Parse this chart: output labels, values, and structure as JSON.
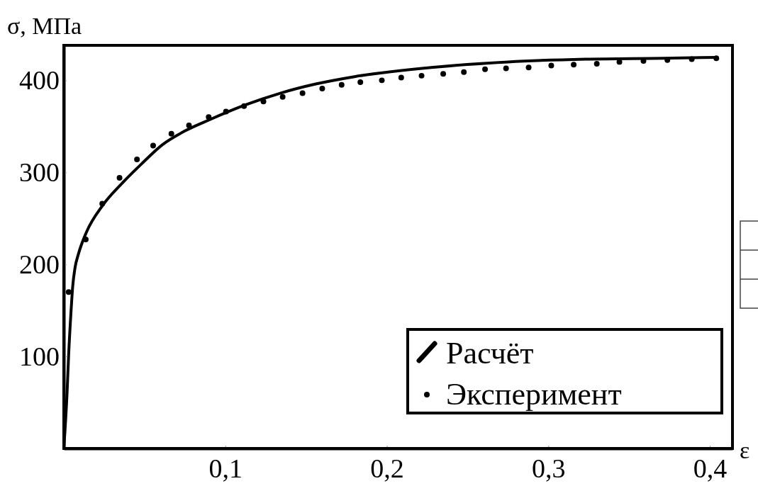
{
  "chart_data": {
    "type": "line",
    "xlabel": "ε",
    "ylabel": "σ, МПа",
    "xlim": [
      0,
      0.414
    ],
    "ylim": [
      0,
      438
    ],
    "xticks": [
      {
        "value": 0.1,
        "label": "0,1"
      },
      {
        "value": 0.2,
        "label": "0,2"
      },
      {
        "value": 0.3,
        "label": "0,3"
      },
      {
        "value": 0.4,
        "label": "0,4"
      }
    ],
    "yticks": [
      100,
      200,
      300,
      400
    ],
    "grid": false,
    "legend": "bottom right",
    "series": [
      {
        "name": "Расчёт",
        "color": "#000000",
        "marker": "none",
        "line_style": "solid",
        "x": [
          0,
          0.002,
          0.003,
          0.0045,
          0.0055,
          0.007,
          0.009,
          0.014,
          0.024,
          0.036,
          0.048,
          0.061,
          0.075,
          0.09,
          0.112,
          0.134,
          0.156,
          0.18,
          0.2275,
          0.275,
          0.323,
          0.371,
          0.404
        ],
        "values": [
          0,
          60,
          102,
          150,
          176,
          197,
          211,
          235,
          264,
          288,
          309,
          330,
          345,
          357,
          373,
          386,
          396,
          404,
          414,
          420,
          423,
          424,
          425
        ]
      },
      {
        "name": "Эксперимент",
        "type": "scatter",
        "color": "#000000",
        "marker": "circle",
        "x": [
          0.003,
          0.0136,
          0.0238,
          0.0345,
          0.0453,
          0.0553,
          0.0666,
          0.0775,
          0.0897,
          0.1004,
          0.1116,
          0.1236,
          0.1355,
          0.1478,
          0.16,
          0.172,
          0.1836,
          0.1969,
          0.2089,
          0.2215,
          0.2349,
          0.2477,
          0.2608,
          0.2738,
          0.2878,
          0.3018,
          0.3157,
          0.33,
          0.344,
          0.3589,
          0.3737,
          0.3888,
          0.404
        ],
        "values": [
          170,
          227,
          266,
          294,
          314,
          329,
          342,
          351,
          360,
          366,
          372,
          377,
          382,
          386,
          391,
          395,
          398,
          400,
          403,
          405,
          407,
          409,
          412,
          413,
          414,
          416,
          417,
          418,
          420,
          421,
          422,
          423,
          424
        ]
      }
    ]
  }
}
